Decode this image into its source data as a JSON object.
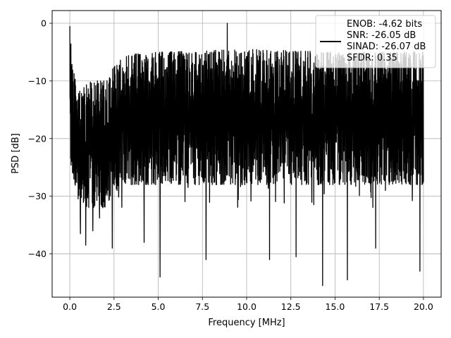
{
  "chart_data": {
    "type": "line",
    "xlabel": "Frequency [MHz]",
    "ylabel": "PSD [dB]",
    "xlim": [
      -1.0,
      21.0
    ],
    "ylim": [
      -47.5,
      2.2
    ],
    "x_ticks": [
      0.0,
      2.5,
      5.0,
      7.5,
      10.0,
      12.5,
      15.0,
      17.5,
      20.0
    ],
    "x_tick_labels": [
      "0.0",
      "2.5",
      "5.0",
      "7.5",
      "10.0",
      "12.5",
      "15.0",
      "17.5",
      "20.0"
    ],
    "y_ticks": [
      0,
      -10,
      -20,
      -30,
      -40
    ],
    "y_tick_labels": [
      "0",
      "−10",
      "−20",
      "−30",
      "−40"
    ],
    "grid": true,
    "legend_placement": "top-right",
    "legend": {
      "line_color": "#000000",
      "entries": [
        "ENOB: -4.62 bits",
        "SNR: -26.05 dB",
        "SINAD: -26.07 dB",
        "SFDR: 0.35"
      ]
    },
    "series": [
      {
        "color": "#000000",
        "x_range": [
          0.0,
          20.0
        ],
        "description_of_values": "dense noise spectrum",
        "upper_envelope": {
          "x": [
            0,
            0.2,
            0.5,
            1.0,
            2.0,
            2.6,
            3.0,
            5.0,
            10.0,
            15.0,
            20.0
          ],
          "y": [
            -0.5,
            -8,
            -12,
            -10,
            -10,
            -7,
            -5.5,
            -5,
            -4.5,
            -5,
            -5
          ]
        },
        "lower_envelope": {
          "x": [
            0,
            0.5,
            1.0,
            2.0,
            3.0,
            5.0,
            10.0,
            15.0,
            20.0
          ],
          "y": [
            -25,
            -30,
            -32,
            -32,
            -28,
            -28,
            -28,
            -28,
            -28
          ]
        },
        "spikes": [
          {
            "x": 0.0,
            "y": -0.5
          },
          {
            "x": 8.9,
            "y": 0.0
          },
          {
            "x": 0.6,
            "y": -36.5
          },
          {
            "x": 0.9,
            "y": -38.5
          },
          {
            "x": 1.3,
            "y": -36.0
          },
          {
            "x": 2.4,
            "y": -39.0
          },
          {
            "x": 4.2,
            "y": -38.0
          },
          {
            "x": 5.1,
            "y": -44.0
          },
          {
            "x": 7.7,
            "y": -41.0
          },
          {
            "x": 11.3,
            "y": -41.0
          },
          {
            "x": 12.8,
            "y": -40.5
          },
          {
            "x": 14.3,
            "y": -45.5
          },
          {
            "x": 15.7,
            "y": -44.5
          },
          {
            "x": 17.3,
            "y": -39.0
          },
          {
            "x": 19.8,
            "y": -43.0
          }
        ]
      }
    ]
  }
}
